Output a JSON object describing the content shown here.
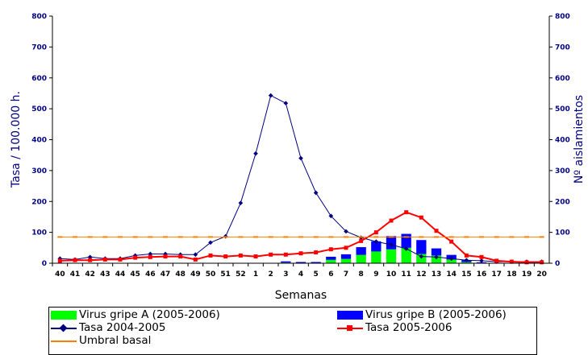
{
  "chart_data": {
    "type": "bar+line",
    "categories": [
      "40",
      "41",
      "42",
      "43",
      "44",
      "45",
      "46",
      "47",
      "48",
      "49",
      "50",
      "51",
      "52",
      "1",
      "2",
      "3",
      "4",
      "5",
      "6",
      "7",
      "8",
      "9",
      "10",
      "11",
      "12",
      "13",
      "14",
      "15",
      "16",
      "17",
      "18",
      "19",
      "20"
    ],
    "xlabel": "Semanas",
    "ylabel_left": "Tasa / 100.000 h.",
    "ylabel_right": "Nº aislamientos",
    "ylim_left": [
      0,
      800
    ],
    "ylim_right": [
      0,
      800
    ],
    "yticks": [
      0,
      100,
      200,
      300,
      400,
      500,
      600,
      700,
      800
    ],
    "bar_series": [
      {
        "name": "Virus gripe A (2005-2006)",
        "color": "#00ff00",
        "axis": "right",
        "values": [
          0,
          0,
          0,
          0,
          0,
          0,
          0,
          0,
          0,
          0,
          0,
          0,
          0,
          0,
          0,
          2,
          1,
          1,
          11,
          14,
          27,
          38,
          45,
          50,
          30,
          25,
          12,
          4,
          1,
          0,
          0,
          0,
          0
        ]
      },
      {
        "name": "Virus gripe B (2005-2006)",
        "color": "#0000ff",
        "axis": "right",
        "values": [
          0,
          0,
          0,
          0,
          0,
          0,
          0,
          0,
          0,
          0,
          0,
          0,
          0,
          0,
          0,
          4,
          3,
          3,
          10,
          15,
          25,
          33,
          43,
          45,
          45,
          23,
          15,
          6,
          2,
          1,
          0,
          0,
          0
        ]
      }
    ],
    "line_series": [
      {
        "name": "Tasa 2004-2005",
        "color": "#000080",
        "marker": "diamond",
        "axis": "left",
        "values": [
          15,
          12,
          20,
          15,
          15,
          25,
          30,
          30,
          28,
          28,
          67,
          87,
          195,
          355,
          543,
          518,
          340,
          228,
          153,
          103,
          83,
          70,
          60,
          47,
          22,
          20,
          15,
          10,
          8,
          5,
          5,
          5,
          5
        ]
      },
      {
        "name": "Tasa 2005-2006",
        "color": "#ff0000",
        "marker": "square",
        "axis": "left",
        "values": [
          8,
          10,
          10,
          12,
          12,
          18,
          20,
          22,
          22,
          12,
          25,
          22,
          25,
          22,
          28,
          28,
          32,
          35,
          45,
          50,
          72,
          100,
          138,
          165,
          148,
          105,
          70,
          25,
          20,
          8,
          5,
          3,
          3
        ]
      },
      {
        "name": "Umbral basal",
        "color": "#ff8000",
        "marker": "dash",
        "axis": "left",
        "values": [
          85,
          85,
          85,
          85,
          85,
          85,
          85,
          85,
          85,
          85,
          85,
          85,
          85,
          85,
          85,
          85,
          85,
          85,
          85,
          85,
          85,
          85,
          85,
          85,
          85,
          85,
          85,
          85,
          85,
          85,
          85,
          85,
          85
        ]
      }
    ],
    "grid": false,
    "legend_position": "bottom"
  },
  "legend": {
    "a_label": "Virus gripe A (2005-2006)",
    "b_label": "Virus gripe B (2005-2006)",
    "tasa1_label": "Tasa 2004-2005",
    "tasa2_label": "Tasa 2005-2006",
    "umbral_label": "Umbral basal"
  }
}
